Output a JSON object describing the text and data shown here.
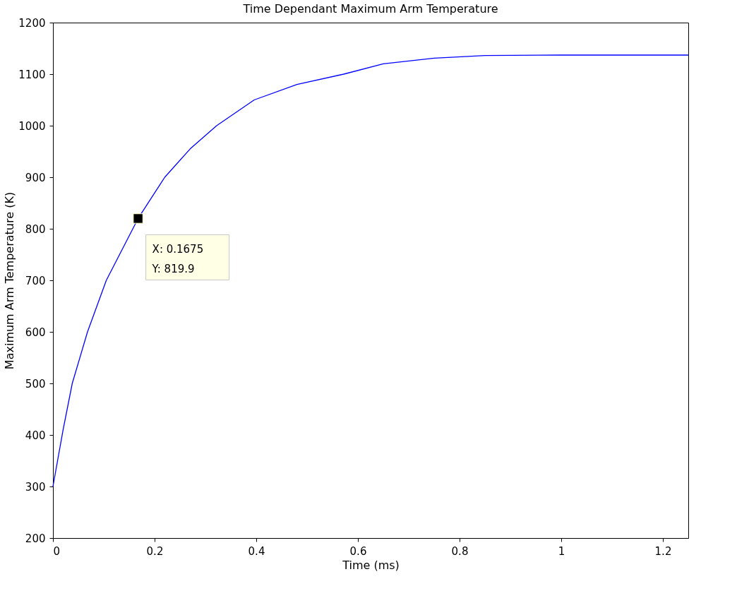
{
  "chart_data": {
    "type": "line",
    "title": "Time Dependant Maximum Arm Temperature",
    "xlabel": "Time (ms)",
    "ylabel": "Maximum Arm Temperature (K)",
    "series": [
      {
        "color": "#0000ff",
        "x": [
          0,
          0.02,
          0.038,
          0.068,
          0.105,
          0.1675,
          0.22,
          0.27,
          0.322,
          0.396,
          0.48,
          0.572,
          0.65,
          0.75,
          0.85,
          1.0,
          1.25
        ],
        "values": [
          300,
          410,
          500,
          600,
          700,
          819.9,
          900,
          955,
          1000,
          1050,
          1080,
          1100,
          1120,
          1131,
          1136,
          1137,
          1137
        ]
      }
    ],
    "xlim": [
      0,
      1.25
    ],
    "ylim": [
      200,
      1200
    ],
    "xticks": [
      0,
      0.2,
      0.4,
      0.6,
      0.8,
      1,
      1.2
    ],
    "yticks": [
      200,
      300,
      400,
      500,
      600,
      700,
      800,
      900,
      1000,
      1100,
      1200
    ],
    "grid": false,
    "marker": "none",
    "line_style": "solid",
    "annotations": [
      {
        "text": "X: 0.1675\nY: 819.9",
        "x": 0.1675,
        "y": 819.9
      }
    ]
  }
}
